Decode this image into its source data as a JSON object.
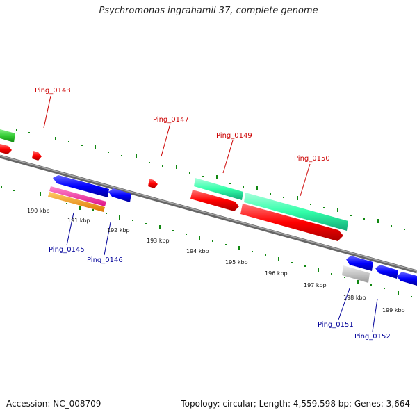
{
  "title": "Psychromonas ingrahamii 37, complete genome",
  "footer": {
    "accession": "Accession: NC_008709",
    "meta": "Topology: circular; Length: 4,559,598 bp; Genes: 3,664"
  },
  "scale_labels": [
    "190 kbp",
    "191 kbp",
    "192 kbp",
    "193 kbp",
    "194 kbp",
    "195 kbp",
    "196 kbp",
    "197 kbp",
    "198 kbp",
    "199 kbp"
  ],
  "gene_labels_top": [
    "Ping_0143",
    "Ping_0147",
    "Ping_0149",
    "Ping_0150"
  ],
  "gene_labels_bottom": [
    "Ping_0145",
    "Ping_0146",
    "Ping_0151",
    "Ping_0152"
  ],
  "colors": {
    "forward_cds": "#ff0000",
    "forward_gene": "#33ffaa",
    "reverse_cds": "#0000ff",
    "rna_pink": "#ff33aa",
    "rna_orange": "#ff9900",
    "other_green": "#33cc33",
    "pseudo_grey": "#bbbbbb",
    "backbone": "#888888",
    "ticks": "#118811"
  }
}
